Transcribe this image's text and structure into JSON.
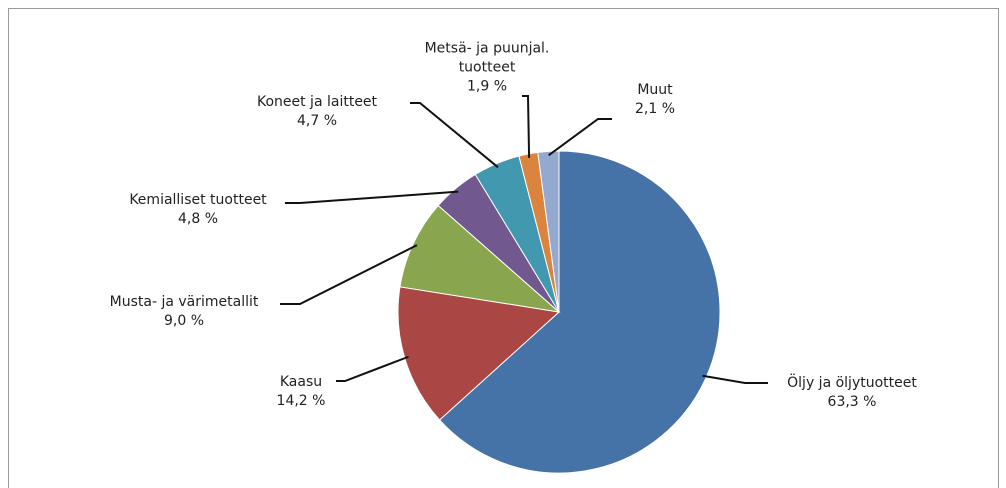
{
  "chart_data": {
    "type": "pie",
    "categories": [
      "Öljy ja öljytuotteet",
      "Kaasu",
      "Musta- ja värimetallit",
      "Kemialliset tuotteet",
      "Koneet ja laitteet",
      "Metsä- ja puunjal. tuotteet",
      "Muut"
    ],
    "values": [
      63.3,
      14.2,
      9.0,
      4.8,
      4.7,
      1.9,
      2.1
    ],
    "value_labels": [
      "63,3 %",
      "14,2 %",
      "9,0 %",
      "4,8 %",
      "4,7 %",
      "1,9 %",
      "2,1 %"
    ],
    "colors": [
      "#4572a7",
      "#aa4643",
      "#89a54e",
      "#71588f",
      "#4198af",
      "#db843d",
      "#93a9cf"
    ]
  }
}
